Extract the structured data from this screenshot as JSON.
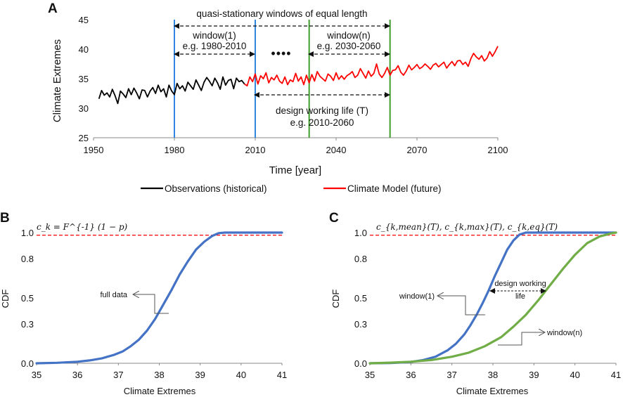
{
  "chart_data": [
    {
      "panel": "A",
      "type": "line",
      "xlabel": "Time [year]",
      "ylabel": "Climate Extremes",
      "xlim": [
        1950,
        2100
      ],
      "ylim": [
        25,
        45
      ],
      "xticks": [
        1950,
        1980,
        2010,
        2040,
        2070,
        2100
      ],
      "yticks": [
        25,
        30,
        35,
        40,
        45
      ],
      "series": [
        {
          "name": "Observations (historical)",
          "color": "#000000",
          "x": [
            1952,
            1953,
            1954,
            1955,
            1956,
            1957,
            1958,
            1959,
            1960,
            1961,
            1962,
            1963,
            1964,
            1965,
            1966,
            1967,
            1968,
            1969,
            1970,
            1971,
            1972,
            1973,
            1974,
            1975,
            1976,
            1977,
            1978,
            1979,
            1980,
            1981,
            1982,
            1983,
            1984,
            1985,
            1986,
            1987,
            1988,
            1989,
            1990,
            1991,
            1992,
            1993,
            1994,
            1995,
            1996,
            1997,
            1998,
            1999,
            2000,
            2001,
            2002,
            2003,
            2004,
            2005,
            2006
          ],
          "values": [
            31.6,
            33.0,
            32.2,
            32.6,
            31.9,
            33.2,
            32.1,
            30.8,
            32.9,
            32.4,
            31.8,
            33.3,
            32.3,
            33.4,
            32.6,
            31.6,
            33.1,
            33.0,
            31.9,
            32.9,
            33.5,
            32.5,
            33.9,
            32.8,
            33.3,
            31.9,
            33.9,
            32.9,
            32.3,
            34.2,
            33.3,
            33.8,
            32.9,
            34.4,
            33.8,
            33.2,
            34.8,
            33.9,
            33.0,
            34.4,
            35.2,
            34.6,
            33.8,
            35.1,
            34.3,
            33.2,
            35.3,
            33.9,
            34.7,
            34.9,
            33.3,
            35.1,
            34.5,
            34.7,
            34.1
          ]
        },
        {
          "name": "Climate Model (future)",
          "color": "#ff0000",
          "x": [
            2006,
            2007,
            2008,
            2009,
            2010,
            2011,
            2012,
            2013,
            2014,
            2015,
            2016,
            2017,
            2018,
            2019,
            2020,
            2021,
            2022,
            2023,
            2024,
            2025,
            2026,
            2027,
            2028,
            2029,
            2030,
            2031,
            2032,
            2033,
            2034,
            2035,
            2036,
            2037,
            2038,
            2039,
            2040,
            2041,
            2042,
            2043,
            2044,
            2045,
            2046,
            2047,
            2048,
            2049,
            2050,
            2051,
            2052,
            2053,
            2054,
            2055,
            2056,
            2057,
            2058,
            2059,
            2060,
            2061,
            2062,
            2063,
            2064,
            2065,
            2066,
            2067,
            2068,
            2069,
            2070,
            2071,
            2072,
            2073,
            2074,
            2075,
            2076,
            2077,
            2078,
            2079,
            2080,
            2081,
            2082,
            2083,
            2084,
            2085,
            2086,
            2087,
            2088,
            2089,
            2090,
            2091,
            2092,
            2093,
            2094,
            2095,
            2096,
            2097,
            2098,
            2099,
            2100
          ],
          "values": [
            34.1,
            33.8,
            35.3,
            34.5,
            35.8,
            34.1,
            35.5,
            35.0,
            36.0,
            34.3,
            35.2,
            34.8,
            35.6,
            34.6,
            34.2,
            35.3,
            34.0,
            34.8,
            34.5,
            35.9,
            34.6,
            35.3,
            34.0,
            35.6,
            34.3,
            35.7,
            34.6,
            36.2,
            35.4,
            35.0,
            34.6,
            35.8,
            35.4,
            34.7,
            36.0,
            34.9,
            35.5,
            34.9,
            35.5,
            35.8,
            36.2,
            35.2,
            35.6,
            36.7,
            35.9,
            35.1,
            36.3,
            35.4,
            35.9,
            37.5,
            35.8,
            35.2,
            35.9,
            36.9,
            35.6,
            36.4,
            36.5,
            37.2,
            36.1,
            35.6,
            36.3,
            37.3,
            36.5,
            36.9,
            37.4,
            36.7,
            37.0,
            37.5,
            37.1,
            36.6,
            37.3,
            37.6,
            37.0,
            37.4,
            37.8,
            36.8,
            37.4,
            37.9,
            37.2,
            38.0,
            38.1,
            37.4,
            37.8,
            37.1,
            38.4,
            39.3,
            38.7,
            38.3,
            38.9,
            38.0,
            38.5,
            39.6,
            38.8,
            39.6,
            40.5
          ]
        }
      ],
      "vlines": [
        {
          "x": 1980,
          "color": "#2e86de"
        },
        {
          "x": 2010,
          "color": "#2e86de"
        },
        {
          "x": 2030,
          "color": "#3f9e2c"
        },
        {
          "x": 2060,
          "color": "#3f9e2c"
        }
      ],
      "annotations": {
        "top": "quasi-stationary windows of equal length",
        "window1": "window(1)",
        "window1_years": "e.g. 1980-2010",
        "dots": "••••",
        "windown": "window(n)",
        "windown_years": "e.g. 2030-2060",
        "design": "design working life (T)",
        "design_years": "e.g. 2010-2060"
      }
    },
    {
      "panel": "B",
      "type": "line",
      "xlabel": "Climate Extremes",
      "ylabel": "CDF",
      "xlim": [
        35,
        41
      ],
      "ylim": [
        0,
        1
      ],
      "xticks": [
        35,
        36,
        37,
        38,
        39,
        40,
        41
      ],
      "ytick_labels": [
        "0.0",
        "0.3",
        "0.5",
        "0.8",
        "1.0"
      ],
      "series": [
        {
          "name": "full data",
          "color": "#4472c4",
          "x": [
            35,
            35.5,
            36,
            36.3,
            36.6,
            36.9,
            37.1,
            37.3,
            37.5,
            37.7,
            37.9,
            38.1,
            38.3,
            38.5,
            38.7,
            38.9,
            39.1,
            39.3,
            39.45,
            39.6,
            40,
            41
          ],
          "values": [
            0.0,
            0.004,
            0.012,
            0.022,
            0.038,
            0.065,
            0.09,
            0.13,
            0.18,
            0.25,
            0.34,
            0.45,
            0.56,
            0.68,
            0.78,
            0.87,
            0.93,
            0.975,
            0.995,
            1.0,
            1.0,
            1.0
          ]
        }
      ],
      "hline": {
        "y": 0.98,
        "color": "#ff0000"
      },
      "formula": "c_k = F^{-1} (1 − p)",
      "label_full": "full data"
    },
    {
      "panel": "C",
      "type": "line",
      "xlabel": "Climate Extremes",
      "ylabel": "CDF",
      "xlim": [
        35,
        41
      ],
      "ylim": [
        0,
        1
      ],
      "xticks": [
        35,
        36,
        37,
        38,
        39,
        40,
        41
      ],
      "ytick_labels": [
        "0.0",
        "0.3",
        "0.5",
        "0.8",
        "1.0"
      ],
      "series": [
        {
          "name": "window(1)",
          "color": "#4472c4",
          "x": [
            35,
            35.5,
            36,
            36.3,
            36.6,
            36.9,
            37.1,
            37.3,
            37.45,
            37.6,
            37.75,
            37.9,
            38.05,
            38.2,
            38.35,
            38.5,
            38.65,
            38.8,
            39.0,
            41
          ],
          "values": [
            0.0,
            0.002,
            0.01,
            0.025,
            0.05,
            0.1,
            0.15,
            0.22,
            0.29,
            0.37,
            0.46,
            0.56,
            0.67,
            0.77,
            0.87,
            0.94,
            0.985,
            1.0,
            1.0,
            1.0
          ]
        },
        {
          "name": "window(n)",
          "color": "#70ad47",
          "x": [
            35,
            35.5,
            36,
            36.5,
            37,
            37.4,
            37.8,
            38.2,
            38.5,
            38.8,
            39.1,
            39.4,
            39.7,
            40.0,
            40.3,
            40.6,
            40.9,
            41
          ],
          "values": [
            0.0,
            0.005,
            0.012,
            0.025,
            0.05,
            0.08,
            0.13,
            0.2,
            0.28,
            0.37,
            0.48,
            0.6,
            0.72,
            0.83,
            0.92,
            0.97,
            0.995,
            1.0
          ]
        }
      ],
      "hline": {
        "y": 0.98,
        "color": "#ff0000"
      },
      "formula": "c_{k,mean}(T), c_{k,max}(T), c_{k,eq}(T)",
      "label_window1": "window(1)",
      "label_windown": "window(n)",
      "design_label_1": "design working",
      "design_label_2": "life"
    }
  ],
  "legend": {
    "observations": "Observations (historical)",
    "model": "Climate Model (future)"
  },
  "panel_letters": [
    "A",
    "B",
    "C"
  ]
}
